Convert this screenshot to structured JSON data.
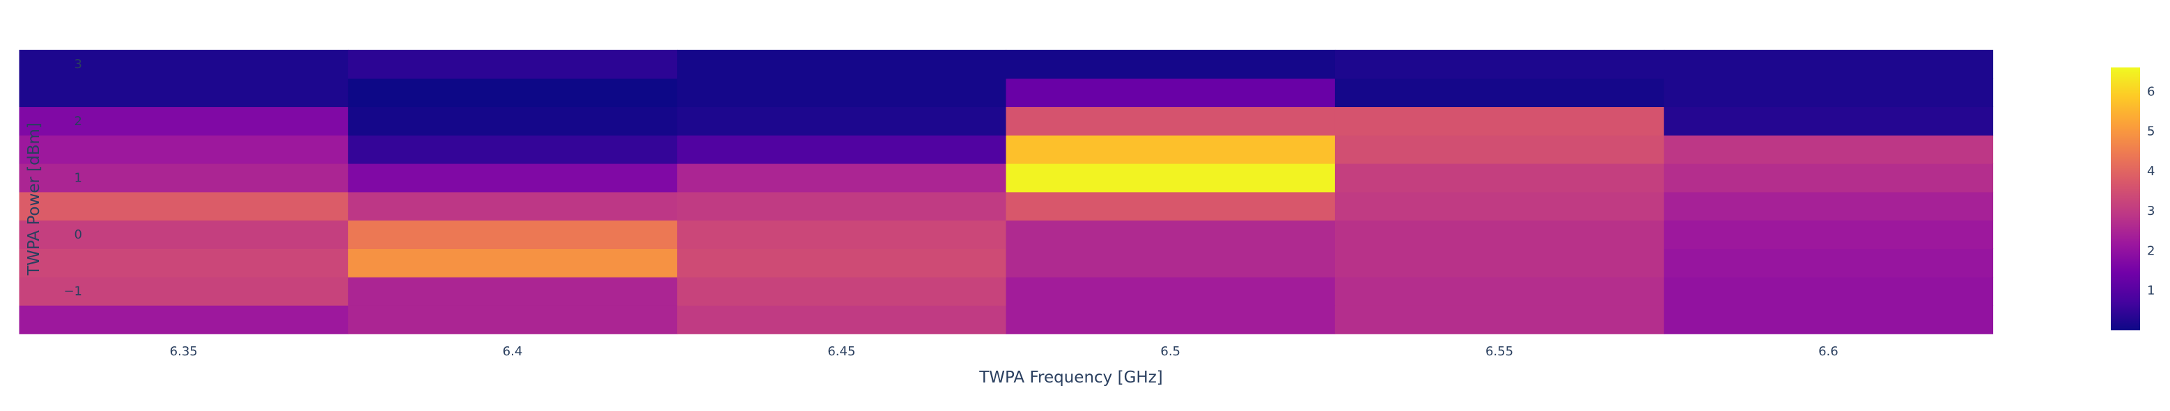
{
  "chart_data": {
    "type": "heatmap",
    "title": "",
    "xlabel": "TWPA Frequency [GHz]",
    "ylabel": "TWPA Power [dBm]",
    "x": [
      6.35,
      6.4,
      6.45,
      6.5,
      6.55,
      6.6
    ],
    "y": [
      -1.5,
      -1.0,
      -0.5,
      0.0,
      0.5,
      1.0,
      1.5,
      2.0,
      2.5,
      3.0
    ],
    "z": [
      [
        2.2,
        2.5,
        3.0,
        2.3,
        2.7,
        2.0
      ],
      [
        3.2,
        2.5,
        3.2,
        2.3,
        2.7,
        2.0
      ],
      [
        3.3,
        4.9,
        3.4,
        2.6,
        2.8,
        2.1
      ],
      [
        3.1,
        4.4,
        3.3,
        2.6,
        2.8,
        2.2
      ],
      [
        3.8,
        2.9,
        3.0,
        3.7,
        3.0,
        2.4
      ],
      [
        2.5,
        1.7,
        2.5,
        6.5,
        3.1,
        2.7
      ],
      [
        2.2,
        0.5,
        0.9,
        5.7,
        3.5,
        2.9
      ],
      [
        1.7,
        0.1,
        0.2,
        3.6,
        3.6,
        0.3
      ],
      [
        0.2,
        0.0,
        0.1,
        1.3,
        0.1,
        0.2
      ],
      [
        0.2,
        0.4,
        0.1,
        0.1,
        0.2,
        0.2
      ]
    ],
    "xlim": [
      6.335,
      6.635
    ],
    "ylim": [
      -1.875,
      3.125
    ],
    "x_ticks": [
      6.35,
      6.4,
      6.45,
      6.5,
      6.55,
      6.6
    ],
    "x_tick_labels": [
      "6.35",
      "6.4",
      "6.45",
      "6.5",
      "6.55",
      "6.6"
    ],
    "y_ticks": [
      -1,
      0,
      1,
      2,
      3
    ],
    "y_tick_labels": [
      "−1",
      "0",
      "1",
      "2",
      "3"
    ],
    "colorscale": "plasma",
    "zlim": [
      0,
      6.6
    ],
    "colorbar_ticks": [
      1,
      2,
      3,
      4,
      5,
      6
    ],
    "colorbar_tick_labels": [
      "1",
      "2",
      "3",
      "4",
      "5",
      "6"
    ],
    "grid": false,
    "legend": "none"
  }
}
